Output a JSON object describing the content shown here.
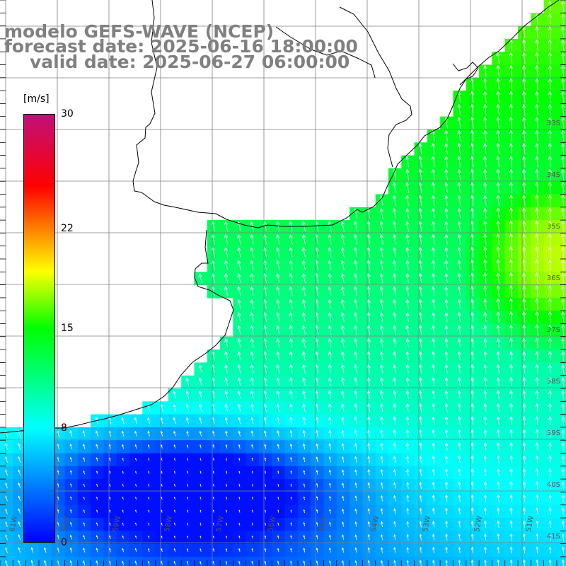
{
  "title": {
    "model": "modelo GEFS-WAVE (NCEP)",
    "forecast": "forecast date: 2025-06-16 18:00:00",
    "valid": "valid date: 2025-06-27 06:00:00"
  },
  "colorbar": {
    "unit": "[m/s]",
    "min": 0,
    "max": 30,
    "ticks": [
      "30",
      "22",
      "15",
      "8",
      "0"
    ],
    "tick_values": [
      30,
      22,
      15,
      8,
      0
    ],
    "stops": [
      {
        "v": 0,
        "color": "#0000ff"
      },
      {
        "v": 8,
        "color": "#00ffff"
      },
      {
        "v": 15,
        "color": "#00ff00"
      },
      {
        "v": 19,
        "color": "#ffff00"
      },
      {
        "v": 22,
        "color": "#ff8000"
      },
      {
        "v": 25,
        "color": "#ff0000"
      },
      {
        "v": 30,
        "color": "#c0107a"
      }
    ]
  },
  "map": {
    "lat_labels": [
      "33S",
      "34S",
      "35S",
      "36S",
      "37S",
      "38S",
      "39S",
      "40S",
      "41S"
    ],
    "lon_labels": [
      "61W",
      "60W",
      "59W",
      "58W",
      "57W",
      "56W",
      "55W",
      "54W",
      "53W",
      "52W",
      "51W"
    ],
    "field_description_values": {
      "north_east_max": 18,
      "central_mid": 13,
      "south_west_min": 2
    },
    "arrow_color": "#ffffff",
    "grid_color": "#808080",
    "coast_color": "#000000"
  }
}
